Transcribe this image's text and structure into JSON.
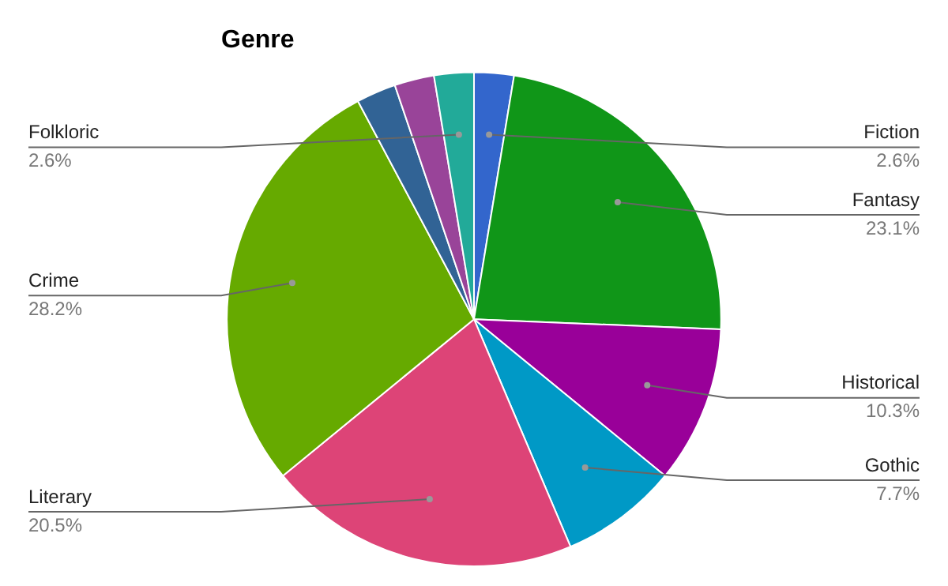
{
  "chart_data": {
    "type": "pie",
    "title": "Genre",
    "categories": [
      "Fiction",
      "Fantasy",
      "Historical",
      "Gothic",
      "Literary",
      "Crime",
      null,
      null,
      "Folkloric"
    ],
    "values": [
      2.6,
      23.1,
      10.3,
      7.7,
      20.5,
      28.2,
      2.6,
      2.6,
      2.6
    ],
    "colors": [
      "#3366cc",
      "#109618",
      "#990099",
      "#0099c6",
      "#dd4477",
      "#66aa00",
      "#316395",
      "#994499",
      "#22aa99"
    ],
    "value_labels": [
      "2.6%",
      "23.1%",
      "10.3%",
      "7.7%",
      "20.5%",
      "28.2%",
      null,
      null,
      "2.6%"
    ],
    "legend": false
  }
}
